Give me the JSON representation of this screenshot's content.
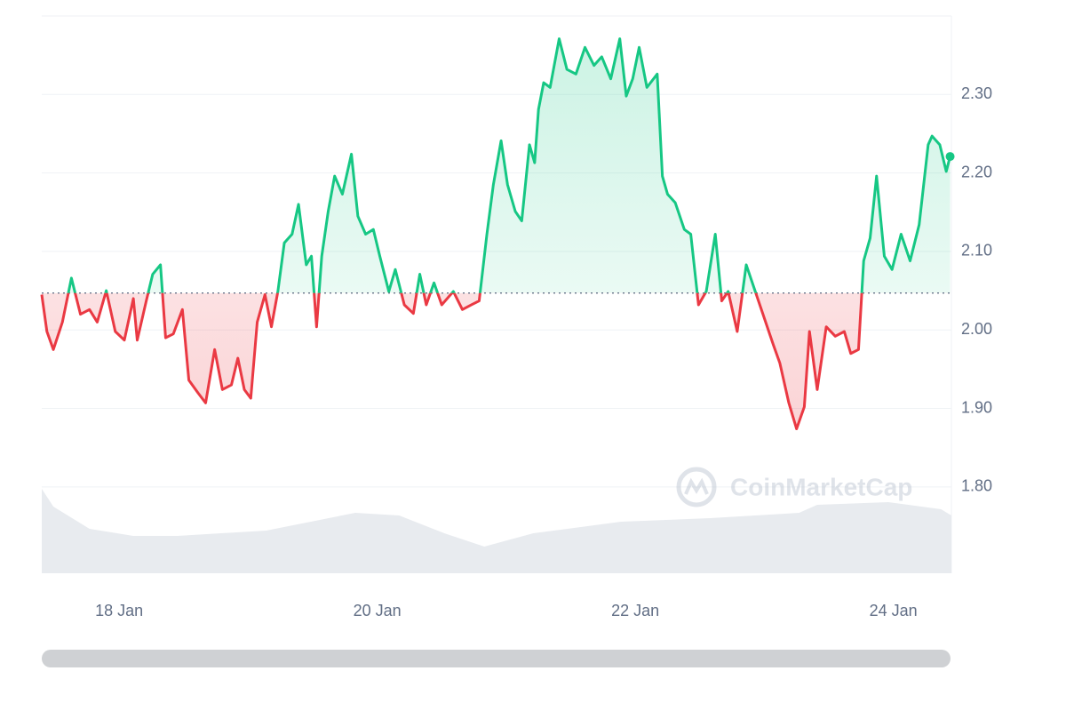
{
  "chart_data": {
    "type": "line",
    "x": [
      17.4,
      17.44,
      17.49,
      17.56,
      17.63,
      17.7,
      17.77,
      17.83,
      17.9,
      17.97,
      18.04,
      18.11,
      18.14,
      18.21,
      18.26,
      18.32,
      18.36,
      18.42,
      18.49,
      18.54,
      18.61,
      18.67,
      18.74,
      18.8,
      18.87,
      18.92,
      18.97,
      19.02,
      19.07,
      19.13,
      19.18,
      19.23,
      19.28,
      19.34,
      19.39,
      19.45,
      19.49,
      19.53,
      19.57,
      19.62,
      19.67,
      19.73,
      19.8,
      19.85,
      19.91,
      19.97,
      20.02,
      20.09,
      20.14,
      20.21,
      20.28,
      20.33,
      20.38,
      20.44,
      20.5,
      20.59,
      20.66,
      20.73,
      20.79,
      20.85,
      20.9,
      20.96,
      21.01,
      21.07,
      21.12,
      21.18,
      21.22,
      21.25,
      21.29,
      21.34,
      21.41,
      21.47,
      21.54,
      21.61,
      21.68,
      21.74,
      21.81,
      21.88,
      21.93,
      21.98,
      22.03,
      22.09,
      22.17,
      22.21,
      22.25,
      22.31,
      22.38,
      22.43,
      22.49,
      22.55,
      22.62,
      22.67,
      22.72,
      22.79,
      22.86,
      22.93,
      23.0,
      23.07,
      23.12,
      23.19,
      23.25,
      23.31,
      23.35,
      23.41,
      23.48,
      23.55,
      23.62,
      23.67,
      23.73,
      23.77,
      23.82,
      23.87,
      23.93,
      23.99,
      24.06,
      24.13,
      24.2,
      24.27,
      24.3,
      24.36,
      24.41,
      24.44
    ],
    "values": [
      2.045,
      1.998,
      1.975,
      2.01,
      2.066,
      2.02,
      2.026,
      2.01,
      2.05,
      1.998,
      1.987,
      2.04,
      1.987,
      2.037,
      2.071,
      2.083,
      1.99,
      1.995,
      2.026,
      1.936,
      1.92,
      1.907,
      1.975,
      1.924,
      1.93,
      1.964,
      1.924,
      1.913,
      2.01,
      2.045,
      2.004,
      2.049,
      2.111,
      2.122,
      2.16,
      2.083,
      2.094,
      2.004,
      2.094,
      2.151,
      2.196,
      2.173,
      2.224,
      2.145,
      2.122,
      2.128,
      2.094,
      2.049,
      2.077,
      2.032,
      2.021,
      2.071,
      2.032,
      2.06,
      2.032,
      2.049,
      2.026,
      2.032,
      2.037,
      2.122,
      2.185,
      2.241,
      2.185,
      2.151,
      2.139,
      2.236,
      2.213,
      2.281,
      2.315,
      2.309,
      2.371,
      2.332,
      2.326,
      2.36,
      2.337,
      2.348,
      2.32,
      2.371,
      2.298,
      2.32,
      2.36,
      2.309,
      2.326,
      2.196,
      2.173,
      2.162,
      2.128,
      2.122,
      2.032,
      2.049,
      2.122,
      2.037,
      2.049,
      1.998,
      2.083,
      2.049,
      2.015,
      1.981,
      1.958,
      1.907,
      1.874,
      1.902,
      1.998,
      1.924,
      2.004,
      1.992,
      1.998,
      1.97,
      1.975,
      2.088,
      2.117,
      2.196,
      2.094,
      2.077,
      2.122,
      2.088,
      2.134,
      2.236,
      2.247,
      2.236,
      2.202,
      2.221
    ],
    "baseline": 2.047,
    "color_up": "#16c784",
    "color_down": "#ea3943",
    "volume": {
      "x": [
        17.4,
        17.49,
        17.77,
        18.11,
        18.45,
        19.14,
        19.83,
        20.17,
        20.52,
        20.83,
        21.21,
        21.89,
        22.58,
        23.27,
        23.41,
        23.96,
        24.37,
        24.45
      ],
      "values": [
        95,
        75,
        50,
        42,
        42,
        48,
        68,
        65,
        45,
        30,
        45,
        58,
        62,
        68,
        77,
        80,
        72,
        65
      ],
      "lim": [
        0,
        100
      ],
      "color": "#e8ebef"
    },
    "xlim": [
      17.4,
      24.45
    ],
    "xticks": [
      {
        "value": 18,
        "label": "18 Jan"
      },
      {
        "value": 20,
        "label": "20 Jan"
      },
      {
        "value": 22,
        "label": "22 Jan"
      },
      {
        "value": 24,
        "label": "24 Jan"
      }
    ],
    "ylim": [
      1.69,
      2.4
    ],
    "yticks": [
      {
        "value": 1.8,
        "label": "1.80"
      },
      {
        "value": 1.9,
        "label": "1.90"
      },
      {
        "value": 2.0,
        "label": "2.00"
      },
      {
        "value": 2.1,
        "label": "2.10"
      },
      {
        "value": 2.2,
        "label": "2.20"
      },
      {
        "value": 2.3,
        "label": "2.30"
      }
    ],
    "grid": true,
    "watermark": "CoinMarketCap"
  }
}
